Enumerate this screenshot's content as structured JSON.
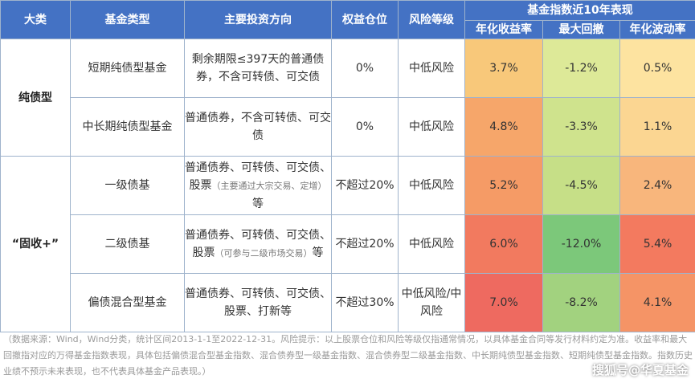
{
  "header": {
    "col1": "大类",
    "col2": "基金类型",
    "col3": "主要投资方向",
    "col4": "权益仓位",
    "col5": "风险等级",
    "group": "基金指数近10年表现",
    "sub1": "年化收益率",
    "sub2": "最大回撤",
    "sub3": "年化波动率"
  },
  "categories": {
    "pure_bond": "纯债型",
    "fixed_plus": "“固收+”"
  },
  "rows": [
    {
      "type": "短期纯债型基金",
      "dir_main": "剩余期限≤397天的普通债券，不含可转债、可交债",
      "dir_note": "",
      "dir_tail": "",
      "equity": "0%",
      "risk": "中低风险",
      "ret": "3.7%",
      "ret_bg": "#f8c87a",
      "mdd": "-1.2%",
      "mdd_bg": "#dde998",
      "vol": "0.5%",
      "vol_bg": "#fde3a0"
    },
    {
      "type": "中长期纯债型基金",
      "dir_main": "普通债券，不含可转债、可交债",
      "dir_note": "",
      "dir_tail": "",
      "equity": "0%",
      "risk": "中低风险",
      "ret": "4.8%",
      "ret_bg": "#f6a66a",
      "mdd": "-3.3%",
      "mdd_bg": "#cfe38d",
      "vol": "1.1%",
      "vol_bg": "#fbd692"
    },
    {
      "type": "一级债基",
      "dir_main": "普通债券、可转债、可交债、股票",
      "dir_note": "（主要通过大宗交易、定增）",
      "dir_tail": "等",
      "equity": "不超过20%",
      "risk": "中低风险",
      "ret": "5.2%",
      "ret_bg": "#f59b66",
      "mdd": "-4.5%",
      "mdd_bg": "#c6df87",
      "vol": "2.4%",
      "vol_bg": "#f8b67c"
    },
    {
      "type": "二级债基",
      "dir_main": "普通债券、可转债、可交债、股票",
      "dir_note": "（可参与二级市场交易）",
      "dir_tail": "等",
      "equity": "不超过20%",
      "risk": "中低风险",
      "ret": "6.0%",
      "ret_bg": "#f27a5f",
      "mdd": "-12.0%",
      "mdd_bg": "#7cc87a",
      "vol": "5.4%",
      "vol_bg": "#f37a5f"
    },
    {
      "type": "偏债混合型基金",
      "dir_main": "普通债券、可转债、可交债、股票、打新等",
      "dir_note": "",
      "dir_tail": "",
      "equity": "不超过30%",
      "risk": "中低风险/中风险",
      "ret": "7.0%",
      "ret_bg": "#ee6a60",
      "mdd": "-8.2%",
      "mdd_bg": "#a2d27f",
      "vol": "4.1%",
      "vol_bg": "#f59466"
    }
  ],
  "footnote": "（数据来源：Wind，Wind分类，统计区间2013-1-1至2022-12-31。风险提示：以上股票仓位和风险等级仅指通常情况，以具体基金合同等发行材料约定为准。收益率和最大回撤指对应的万得基金指数表现，具体包括偏债混合型基金指数、混合债券型一级基金指数、混合债券型二级基金指数、中长期纯债型基金指数、短期纯债型基金指数。指数历史业绩不预示未来表现，也不代表具体基金产品表现。）",
  "watermark": "搜狐号@华夏基金"
}
